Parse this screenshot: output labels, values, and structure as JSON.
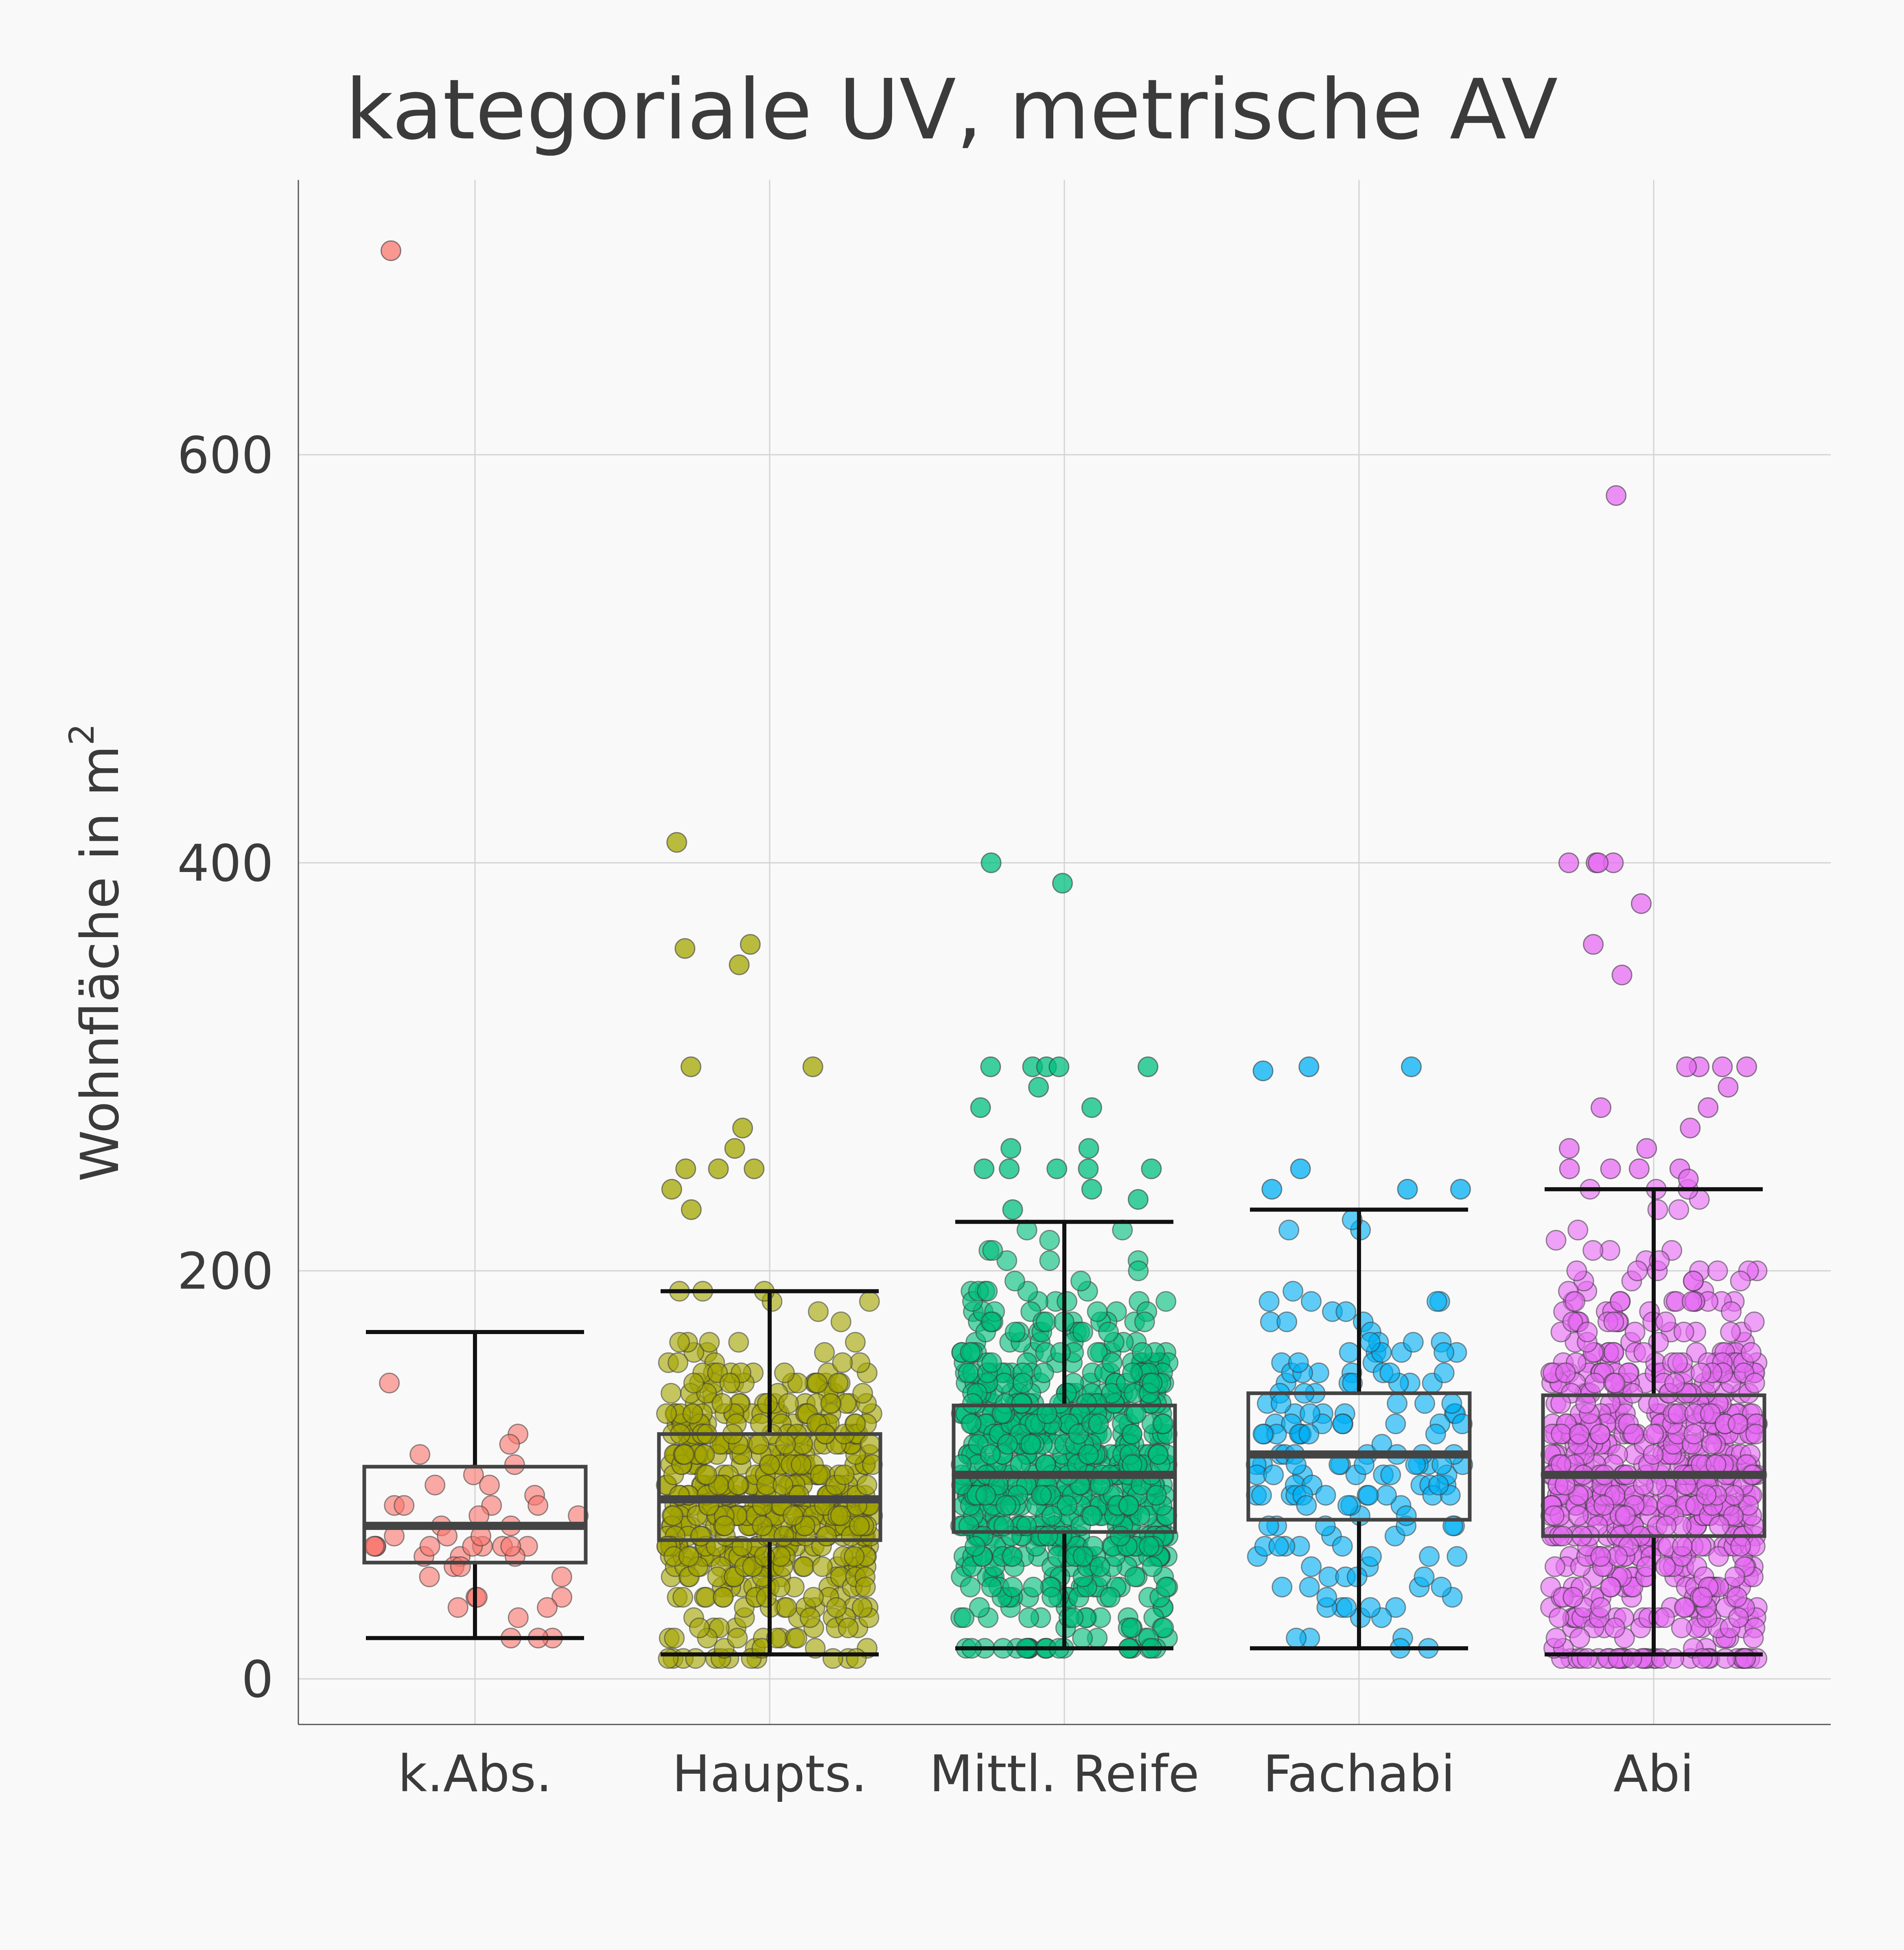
{
  "chart_data": {
    "type": "box",
    "title": "kategoriale UV, metrische AV",
    "ylabel": "Wohnfläche in m",
    "ylabel_sup": "2",
    "xlabel": "",
    "ylim": [
      -110,
      710
    ],
    "yticks": [
      0,
      200,
      400,
      600
    ],
    "grid": true,
    "legend": "none",
    "categories": [
      "k.Abs.",
      "Haupts.",
      "Mittl. Reife",
      "Fachabi",
      "Abi"
    ],
    "colors": [
      "#F8766D",
      "#A3A500",
      "#00BF7D",
      "#00B0F6",
      "#E76BF3"
    ],
    "boxes": [
      {
        "min": 20,
        "q1": 57,
        "median": 75,
        "q3": 104,
        "max": 170
      },
      {
        "min": 12,
        "q1": 68,
        "median": 88,
        "q3": 120,
        "max": 190
      },
      {
        "min": 15,
        "q1": 72,
        "median": 100,
        "q3": 134,
        "max": 224
      },
      {
        "min": 15,
        "q1": 78,
        "median": 110,
        "q3": 140,
        "max": 230
      },
      {
        "min": 12,
        "q1": 70,
        "median": 100,
        "q3": 139,
        "max": 240
      }
    ],
    "outliers": [
      {
        "category": "k.Abs.",
        "values": [
          700
        ]
      },
      {
        "category": "Haupts.",
        "values": [
          410,
          360,
          358,
          350,
          300,
          300,
          270,
          260,
          250,
          250,
          250,
          240,
          230
        ]
      },
      {
        "category": "Mittl. Reife",
        "values": [
          400,
          390,
          300,
          300,
          300,
          300,
          300,
          290,
          280,
          280,
          260,
          260,
          250,
          250,
          250,
          250,
          250,
          240,
          235,
          230
        ]
      },
      {
        "category": "Fachabi",
        "values": [
          300,
          300,
          298,
          250,
          240,
          240,
          240
        ]
      },
      {
        "category": "Abi",
        "values": [
          580,
          400,
          400,
          400,
          400,
          380,
          360,
          345,
          300,
          300,
          300,
          300,
          290,
          280,
          280,
          270,
          260,
          260,
          250,
          250,
          250,
          250,
          245
        ]
      }
    ],
    "n_approx": [
      45,
      560,
      720,
      160,
      700
    ]
  }
}
